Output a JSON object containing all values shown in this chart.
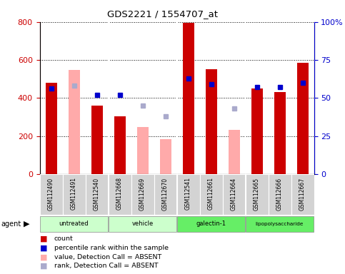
{
  "title": "GDS2221 / 1554707_at",
  "samples": [
    "GSM112490",
    "GSM112491",
    "GSM112540",
    "GSM112668",
    "GSM112669",
    "GSM112670",
    "GSM112541",
    "GSM112661",
    "GSM112664",
    "GSM112665",
    "GSM112666",
    "GSM112667"
  ],
  "count": [
    480,
    null,
    360,
    305,
    null,
    null,
    795,
    550,
    null,
    450,
    430,
    585
  ],
  "percentile_rank_pct": [
    56,
    null,
    52,
    52,
    null,
    null,
    63,
    59,
    null,
    57,
    57,
    60
  ],
  "value_absent": [
    null,
    548,
    null,
    null,
    248,
    183,
    null,
    null,
    232,
    null,
    null,
    null
  ],
  "rank_absent_pct": [
    null,
    58,
    null,
    null,
    45,
    38,
    null,
    null,
    43,
    null,
    null,
    null
  ],
  "ylim_left": [
    0,
    800
  ],
  "ylim_right": [
    0,
    100
  ],
  "yticks_left": [
    0,
    200,
    400,
    600,
    800
  ],
  "yticks_right": [
    0,
    25,
    50,
    75,
    100
  ],
  "ytick_labels_right": [
    "0",
    "25",
    "50",
    "75",
    "100%"
  ],
  "left_axis_color": "#cc0000",
  "right_axis_color": "#0000cc",
  "bar_color_count": "#cc0000",
  "bar_color_absent": "#ffaaaa",
  "dot_color_rank": "#0000cc",
  "dot_color_rank_absent": "#aaaacc",
  "grid_color": "#000000",
  "background_color": "#ffffff",
  "groups_info": [
    {
      "label": "untreated",
      "color": "#ccffcc",
      "start": 0,
      "end": 2
    },
    {
      "label": "vehicle",
      "color": "#ccffcc",
      "start": 3,
      "end": 5
    },
    {
      "label": "galectin-1",
      "color": "#66ee66",
      "start": 6,
      "end": 8
    },
    {
      "label": "lipopolysaccharide",
      "color": "#66ee66",
      "start": 9,
      "end": 11
    }
  ],
  "group_dividers": [
    2.5,
    5.5,
    8.5
  ],
  "bar_width": 0.5,
  "dot_size": 5,
  "figsize": [
    4.83,
    3.84
  ],
  "dpi": 100
}
